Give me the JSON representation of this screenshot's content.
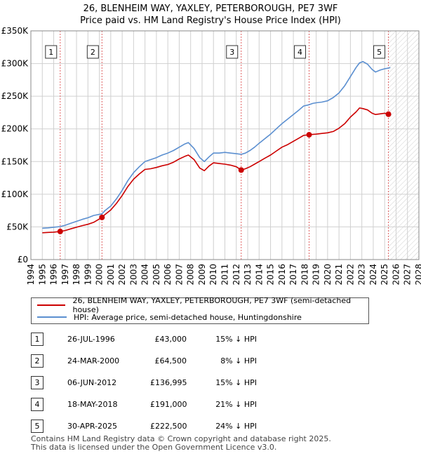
{
  "title": {
    "line1": "26, BLENHEIM WAY, YAXLEY, PETERBOROUGH, PE7 3WF",
    "line2": "Price paid vs. HM Land Registry's House Price Index (HPI)"
  },
  "colors": {
    "price_line": "#cc0000",
    "hpi_line": "#5b8fd0",
    "grid": "#d0d0d0",
    "plot_bg": "#ffffff",
    "band": "#dfe9f7",
    "marker_dash": "#e06060",
    "hatch": "#b0b0b0"
  },
  "chart_data": {
    "type": "line",
    "xlim": [
      1994.0,
      2028.0
    ],
    "ylim": [
      0,
      350000
    ],
    "y_ticks": [
      0,
      50000,
      100000,
      150000,
      200000,
      250000,
      300000,
      350000
    ],
    "y_tick_labels": [
      "£0",
      "£50K",
      "£100K",
      "£150K",
      "£200K",
      "£250K",
      "£300K",
      "£350K"
    ],
    "x_ticks": [
      "1994",
      "1995",
      "1996",
      "1997",
      "1998",
      "1999",
      "2000",
      "2001",
      "2002",
      "2003",
      "2004",
      "2005",
      "2006",
      "2007",
      "2008",
      "2009",
      "2010",
      "2011",
      "2012",
      "2013",
      "2014",
      "2015",
      "2016",
      "2017",
      "2018",
      "2019",
      "2020",
      "2021",
      "2022",
      "2023",
      "2024",
      "2025",
      "2026",
      "2027",
      "2028"
    ],
    "hatch_from": 2025.33,
    "series": [
      {
        "name": "26, BLENHEIM WAY, YAXLEY, PETERBOROUGH, PE7 3WF (semi-detached house)",
        "color": "#cc0000",
        "x": [
          1995.0,
          1995.5,
          1996.0,
          1996.57,
          1997.0,
          1997.5,
          1998.0,
          1998.5,
          1999.0,
          1999.5,
          2000.23,
          2000.5,
          2001.0,
          2001.5,
          2002.0,
          2002.5,
          2003.0,
          2003.5,
          2004.0,
          2004.5,
          2005.0,
          2005.5,
          2006.0,
          2006.5,
          2007.0,
          2007.5,
          2007.8,
          2008.3,
          2008.8,
          2009.2,
          2009.6,
          2010.0,
          2010.5,
          2011.0,
          2011.5,
          2012.0,
          2012.43,
          2012.8,
          2013.2,
          2013.6,
          2014.0,
          2014.5,
          2015.0,
          2015.5,
          2016.0,
          2016.5,
          2017.0,
          2017.5,
          2017.9,
          2018.38,
          2018.7,
          2019.0,
          2019.5,
          2020.0,
          2020.5,
          2021.0,
          2021.5,
          2022.0,
          2022.5,
          2022.8,
          2023.1,
          2023.5,
          2023.9,
          2024.2,
          2024.6,
          2025.0,
          2025.33
        ],
        "values": [
          41000,
          41500,
          42000,
          43000,
          44500,
          47000,
          49500,
          52000,
          54000,
          57000,
          64500,
          69000,
          76000,
          86000,
          98000,
          112000,
          123000,
          131000,
          138000,
          139000,
          141000,
          143500,
          145500,
          149000,
          154000,
          158000,
          160000,
          153000,
          140000,
          136000,
          143000,
          148000,
          147000,
          146000,
          144500,
          142000,
          136995,
          139000,
          142000,
          146000,
          150000,
          155000,
          160000,
          166000,
          172000,
          176000,
          181000,
          186000,
          190000,
          191000,
          191500,
          192000,
          193000,
          194000,
          196000,
          201000,
          208000,
          218000,
          226000,
          232000,
          231000,
          229000,
          224000,
          222000,
          223000,
          224000,
          222500
        ]
      },
      {
        "name": "HPI: Average price, semi-detached house, Huntingdonshire",
        "color": "#5b8fd0",
        "x": [
          1995.0,
          1995.5,
          1996.0,
          1996.57,
          1997.0,
          1997.5,
          1998.0,
          1998.5,
          1999.0,
          1999.5,
          2000.23,
          2000.5,
          2001.0,
          2001.5,
          2002.0,
          2002.5,
          2003.0,
          2003.5,
          2004.0,
          2004.5,
          2005.0,
          2005.5,
          2006.0,
          2006.5,
          2007.0,
          2007.5,
          2007.8,
          2008.3,
          2008.8,
          2009.2,
          2009.6,
          2010.0,
          2010.5,
          2011.0,
          2011.5,
          2012.0,
          2012.43,
          2012.8,
          2013.2,
          2013.6,
          2014.0,
          2014.5,
          2015.0,
          2015.5,
          2016.0,
          2016.5,
          2017.0,
          2017.5,
          2017.9,
          2018.38,
          2018.7,
          2019.0,
          2019.5,
          2020.0,
          2020.5,
          2021.0,
          2021.5,
          2022.0,
          2022.5,
          2022.8,
          2023.1,
          2023.5,
          2023.9,
          2024.2,
          2024.6,
          2025.0,
          2025.33,
          2025.5
        ],
        "values": [
          48000,
          48500,
          49500,
          50500,
          52500,
          55500,
          58500,
          61500,
          64000,
          67500,
          70000,
          75000,
          82000,
          93000,
          106000,
          121000,
          133000,
          142000,
          150000,
          153000,
          156000,
          160000,
          163000,
          167000,
          172000,
          177000,
          179000,
          170000,
          156000,
          150000,
          157000,
          163000,
          163000,
          164000,
          163000,
          162000,
          161000,
          163000,
          167000,
          172000,
          178000,
          185000,
          192000,
          200000,
          208000,
          215000,
          222000,
          229000,
          235000,
          237000,
          239000,
          240000,
          241000,
          243000,
          248000,
          255000,
          266000,
          280000,
          294000,
          301000,
          303000,
          299000,
          291000,
          287000,
          290000,
          292000,
          293000,
          294000
        ]
      }
    ],
    "sales": [
      {
        "id": "1",
        "x": 1996.57,
        "price": 43000
      },
      {
        "id": "2",
        "x": 2000.23,
        "price": 64500
      },
      {
        "id": "3",
        "x": 2012.43,
        "price": 136995
      },
      {
        "id": "4",
        "x": 2018.38,
        "price": 191000
      },
      {
        "id": "5",
        "x": 2025.33,
        "price": 222500
      }
    ]
  },
  "legend": {
    "price_label": "26, BLENHEIM WAY, YAXLEY, PETERBOROUGH, PE7 3WF (semi-detached house)",
    "hpi_label": "HPI: Average price, semi-detached house, Huntingdonshire"
  },
  "sales_table": [
    {
      "num": "1",
      "date": "26-JUL-1996",
      "price": "£43,000",
      "hpi": "15% ↓ HPI"
    },
    {
      "num": "2",
      "date": "24-MAR-2000",
      "price": "£64,500",
      "hpi": "8% ↓ HPI"
    },
    {
      "num": "3",
      "date": "06-JUN-2012",
      "price": "£136,995",
      "hpi": "15% ↓ HPI"
    },
    {
      "num": "4",
      "date": "18-MAY-2018",
      "price": "£191,000",
      "hpi": "21% ↓ HPI"
    },
    {
      "num": "5",
      "date": "30-APR-2025",
      "price": "£222,500",
      "hpi": "24% ↓ HPI"
    }
  ],
  "footer": {
    "line1": "Contains HM Land Registry data © Crown copyright and database right 2025.",
    "line2": "This data is licensed under the Open Government Licence v3.0."
  }
}
